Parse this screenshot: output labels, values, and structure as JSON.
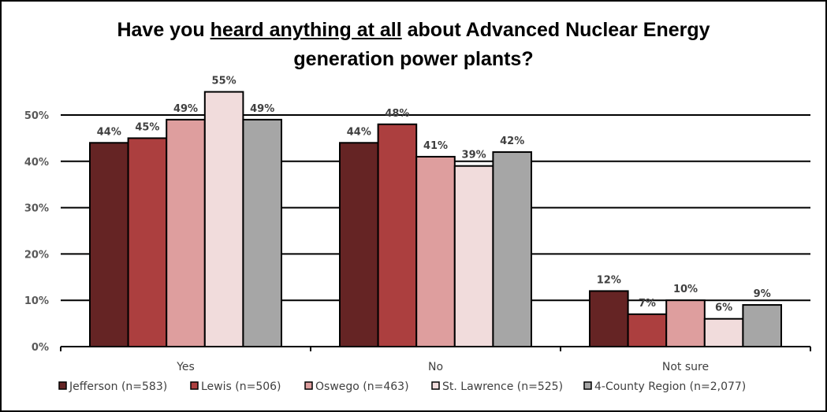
{
  "chart_data": {
    "type": "bar",
    "title_parts": [
      "Have you ",
      "heard anything at all",
      " about Advanced Nuclear Energy",
      "generation power plants?"
    ],
    "categories": [
      "Yes",
      "No",
      "Not sure"
    ],
    "series": [
      {
        "name": "Jefferson (n=583)",
        "color": "#652424",
        "values": [
          44,
          44,
          12
        ]
      },
      {
        "name": "Lewis (n=506)",
        "color": "#AC3F3F",
        "values": [
          45,
          48,
          7
        ]
      },
      {
        "name": "Oswego (n=463)",
        "color": "#DE9E9E",
        "values": [
          49,
          41,
          10
        ]
      },
      {
        "name": "St. Lawrence (n=525)",
        "color": "#F1DCDC",
        "values": [
          55,
          39,
          6
        ]
      },
      {
        "name": "4-County Region (n=2,077)",
        "color": "#A6A6A6",
        "values": [
          49,
          42,
          9
        ]
      }
    ],
    "yticks": [
      "0%",
      "10%",
      "20%",
      "30%",
      "40%",
      "50%"
    ],
    "ylim": [
      0,
      50
    ],
    "value_suffix": "%",
    "grid": true,
    "legend": "bottom"
  }
}
